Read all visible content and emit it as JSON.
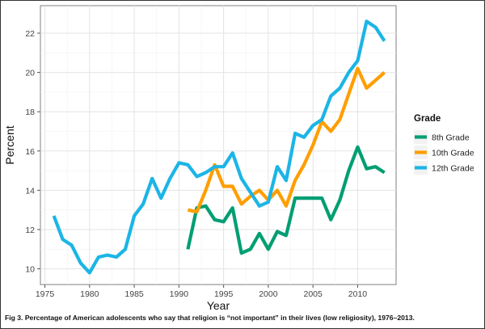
{
  "caption": "Fig 3. Percentage of American adolescents who say that religion is “not important” in their lives (low religiosity), 1976–2013.",
  "chart_data": {
    "type": "line",
    "xlabel": "Year",
    "ylabel": "Percent",
    "xlim": [
      1974.5,
      2014.3
    ],
    "ylim": [
      9.2,
      23.4
    ],
    "xticks": [
      1975,
      1980,
      1985,
      1990,
      1995,
      2000,
      2005,
      2010
    ],
    "yticks": [
      10,
      12,
      14,
      16,
      18,
      20,
      22
    ],
    "grid": true,
    "legend": {
      "title": "Grade",
      "position": "right"
    },
    "series": [
      {
        "name": "8th Grade",
        "color": "#009E73",
        "x": [
          1991,
          1992,
          1993,
          1994,
          1995,
          1996,
          1997,
          1998,
          1999,
          2000,
          2001,
          2002,
          2003,
          2004,
          2005,
          2006,
          2007,
          2008,
          2009,
          2010,
          2011,
          2012,
          2013
        ],
        "y": [
          11.0,
          13.1,
          13.2,
          12.5,
          12.4,
          13.1,
          10.8,
          11.0,
          11.8,
          11.0,
          11.9,
          11.7,
          13.6,
          13.6,
          13.6,
          13.6,
          12.5,
          13.5,
          15.0,
          16.2,
          15.1,
          15.2,
          14.9
        ]
      },
      {
        "name": "10th Grade",
        "color": "#FF9E00",
        "x": [
          1991,
          1992,
          1993,
          1994,
          1995,
          1996,
          1997,
          1998,
          1999,
          2000,
          2001,
          2002,
          2003,
          2004,
          2005,
          2006,
          2007,
          2008,
          2009,
          2010,
          2011,
          2012,
          2013
        ],
        "y": [
          13.0,
          12.9,
          14.0,
          15.3,
          14.2,
          14.2,
          13.3,
          13.7,
          14.0,
          13.5,
          14.0,
          13.2,
          14.5,
          15.3,
          16.3,
          17.5,
          17.0,
          17.6,
          18.9,
          20.2,
          19.2,
          19.6,
          20.0
        ]
      },
      {
        "name": "12th Grade",
        "color": "#1BB5E6",
        "x": [
          1976,
          1977,
          1978,
          1979,
          1980,
          1981,
          1982,
          1983,
          1984,
          1985,
          1986,
          1987,
          1988,
          1989,
          1990,
          1991,
          1992,
          1993,
          1994,
          1995,
          1996,
          1997,
          1998,
          1999,
          2000,
          2001,
          2002,
          2003,
          2004,
          2005,
          2006,
          2007,
          2008,
          2009,
          2010,
          2011,
          2012,
          2013
        ],
        "y": [
          12.7,
          11.5,
          11.2,
          10.3,
          9.8,
          10.6,
          10.7,
          10.6,
          11.0,
          12.7,
          13.3,
          14.6,
          13.6,
          14.6,
          15.4,
          15.3,
          14.7,
          14.9,
          15.2,
          15.2,
          15.9,
          14.6,
          13.9,
          13.2,
          13.4,
          15.2,
          14.5,
          16.9,
          16.7,
          17.3,
          17.6,
          18.8,
          19.2,
          20.0,
          20.6,
          22.6,
          22.3,
          21.6
        ]
      }
    ]
  }
}
